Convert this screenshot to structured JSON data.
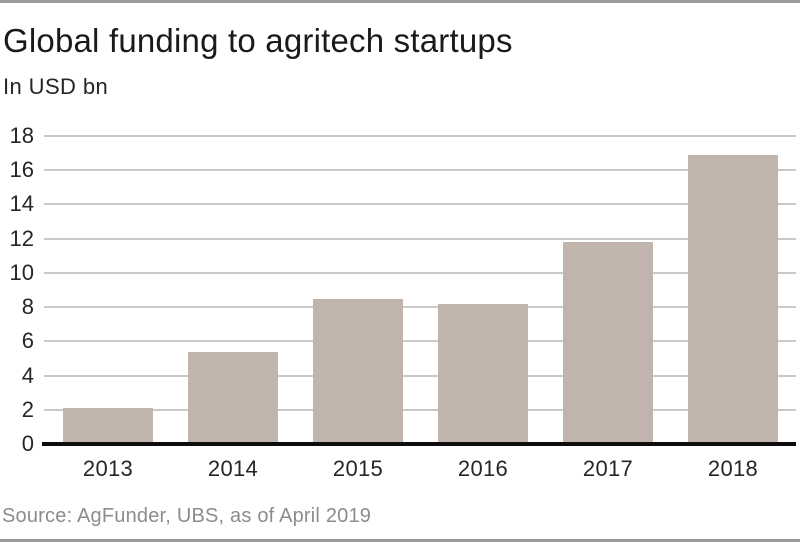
{
  "header": {
    "title": "Global funding to agritech startups",
    "subtitle": "In USD bn"
  },
  "footer": {
    "source": "Source: AgFunder, UBS, as of April 2019"
  },
  "colors": {
    "bar": "#c1b4ac",
    "gridline": "#c9c9c9",
    "axis_line": "#0d0d0d",
    "title_text": "#1a1a1a",
    "tick_text": "#262626",
    "source_text": "#8c8c8c",
    "card_rule": "#9b9b9b"
  },
  "chart_data": {
    "type": "bar",
    "title": "Global funding to agritech startups",
    "subtitle": "In USD bn",
    "categories": [
      "2013",
      "2014",
      "2015",
      "2016",
      "2017",
      "2018"
    ],
    "values": [
      2.1,
      5.4,
      8.5,
      8.2,
      11.8,
      16.9
    ],
    "xlabel": "",
    "ylabel": "In USD bn",
    "ylim": [
      0,
      18
    ],
    "ytick_step": 2,
    "ytick_labels": [
      "0",
      "2",
      "4",
      "6",
      "8",
      "10",
      "12",
      "14",
      "16",
      "18"
    ],
    "grid": "horizontal",
    "legend": "none",
    "bar_color": "#c1b4ac",
    "source": "Source: AgFunder, UBS, as of April 2019"
  }
}
